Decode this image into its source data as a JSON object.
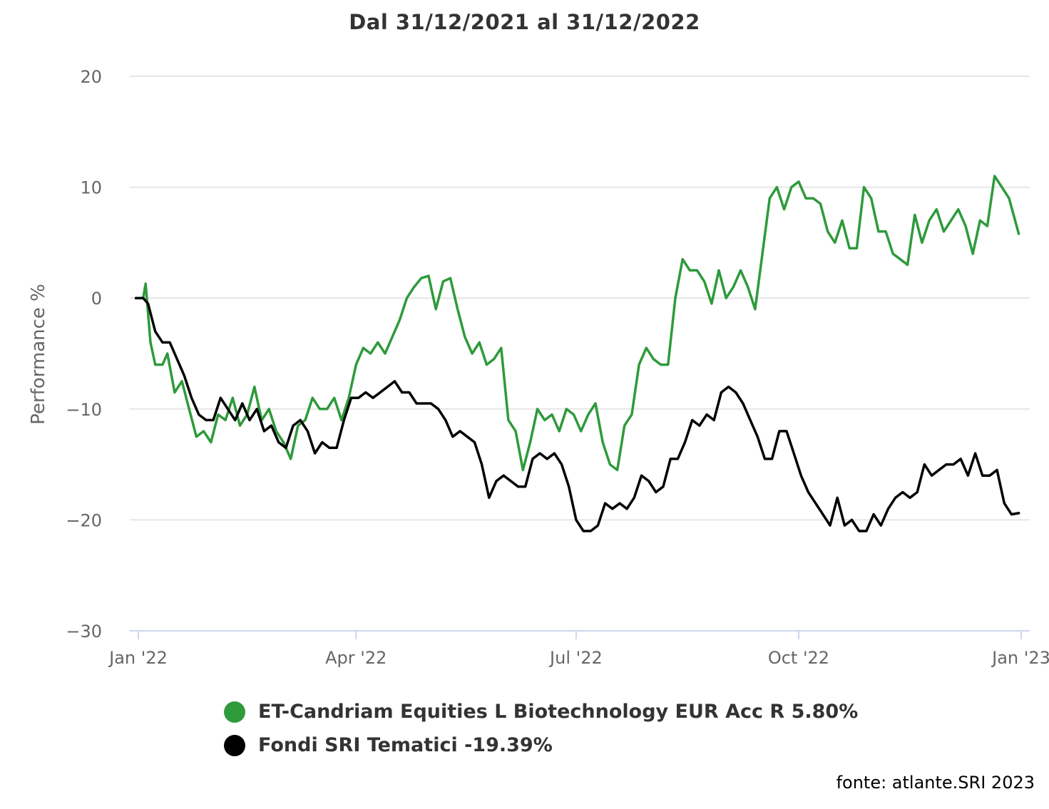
{
  "chart_data": {
    "type": "line",
    "title": "Dal 31/12/2021 al 31/12/2022",
    "ylabel": "Performance %",
    "xlabel": "",
    "ylim": [
      -30,
      20
    ],
    "y_ticks": [
      20,
      10,
      0,
      -10,
      -20,
      -30
    ],
    "y_tick_labels": [
      "20",
      "10",
      "0",
      "−10",
      "−20",
      "−30"
    ],
    "x_range": [
      "2021-12-31",
      "2022-12-31"
    ],
    "x_ticks": [
      {
        "date": "2022-01-01",
        "label": "Jan '22"
      },
      {
        "date": "2022-04-01",
        "label": "Apr '22"
      },
      {
        "date": "2022-07-01",
        "label": "Jul '22"
      },
      {
        "date": "2022-10-01",
        "label": "Oct '22"
      },
      {
        "date": "2023-01-01",
        "label": "Jan '23"
      }
    ],
    "grid": true,
    "legend_position": "bottom",
    "series": [
      {
        "name": "ET-Candriam Equities L Biotechnology EUR Acc R 5.80%",
        "color": "#2e9a3b",
        "points": [
          [
            "2021-12-31",
            0
          ],
          [
            "2022-01-03",
            0
          ],
          [
            "2022-01-04",
            1.3
          ],
          [
            "2022-01-06",
            -4
          ],
          [
            "2022-01-08",
            -6
          ],
          [
            "2022-01-11",
            -6
          ],
          [
            "2022-01-13",
            -5
          ],
          [
            "2022-01-16",
            -8.5
          ],
          [
            "2022-01-19",
            -7.5
          ],
          [
            "2022-01-22",
            -10
          ],
          [
            "2022-01-25",
            -12.5
          ],
          [
            "2022-01-28",
            -12
          ],
          [
            "2022-01-31",
            -13
          ],
          [
            "2022-02-03",
            -10.5
          ],
          [
            "2022-02-06",
            -11
          ],
          [
            "2022-02-09",
            -9
          ],
          [
            "2022-02-12",
            -11.5
          ],
          [
            "2022-02-15",
            -10.5
          ],
          [
            "2022-02-18",
            -8
          ],
          [
            "2022-02-21",
            -11
          ],
          [
            "2022-02-24",
            -10
          ],
          [
            "2022-02-27",
            -12
          ],
          [
            "2022-03-02",
            -13
          ],
          [
            "2022-03-05",
            -14.5
          ],
          [
            "2022-03-08",
            -11.5
          ],
          [
            "2022-03-11",
            -11
          ],
          [
            "2022-03-14",
            -9
          ],
          [
            "2022-03-17",
            -10
          ],
          [
            "2022-03-20",
            -10
          ],
          [
            "2022-03-23",
            -9
          ],
          [
            "2022-03-26",
            -11
          ],
          [
            "2022-03-29",
            -9
          ],
          [
            "2022-04-01",
            -6
          ],
          [
            "2022-04-04",
            -4.5
          ],
          [
            "2022-04-07",
            -5
          ],
          [
            "2022-04-10",
            -4
          ],
          [
            "2022-04-13",
            -5
          ],
          [
            "2022-04-16",
            -3.5
          ],
          [
            "2022-04-19",
            -2
          ],
          [
            "2022-04-22",
            0
          ],
          [
            "2022-04-25",
            1
          ],
          [
            "2022-04-28",
            1.8
          ],
          [
            "2022-05-01",
            2
          ],
          [
            "2022-05-04",
            -1
          ],
          [
            "2022-05-07",
            1.5
          ],
          [
            "2022-05-10",
            1.8
          ],
          [
            "2022-05-13",
            -1
          ],
          [
            "2022-05-16",
            -3.5
          ],
          [
            "2022-05-19",
            -5
          ],
          [
            "2022-05-22",
            -4
          ],
          [
            "2022-05-25",
            -6
          ],
          [
            "2022-05-28",
            -5.5
          ],
          [
            "2022-05-31",
            -4.5
          ],
          [
            "2022-06-03",
            -11
          ],
          [
            "2022-06-06",
            -12
          ],
          [
            "2022-06-09",
            -15.5
          ],
          [
            "2022-06-12",
            -13
          ],
          [
            "2022-06-15",
            -10
          ],
          [
            "2022-06-18",
            -11
          ],
          [
            "2022-06-21",
            -10.5
          ],
          [
            "2022-06-24",
            -12
          ],
          [
            "2022-06-27",
            -10
          ],
          [
            "2022-06-30",
            -10.5
          ],
          [
            "2022-07-03",
            -12
          ],
          [
            "2022-07-06",
            -10.5
          ],
          [
            "2022-07-09",
            -9.5
          ],
          [
            "2022-07-12",
            -13
          ],
          [
            "2022-07-15",
            -15
          ],
          [
            "2022-07-18",
            -15.5
          ],
          [
            "2022-07-21",
            -11.5
          ],
          [
            "2022-07-24",
            -10.5
          ],
          [
            "2022-07-27",
            -6
          ],
          [
            "2022-07-30",
            -4.5
          ],
          [
            "2022-08-02",
            -5.5
          ],
          [
            "2022-08-05",
            -6
          ],
          [
            "2022-08-08",
            -6
          ],
          [
            "2022-08-11",
            0
          ],
          [
            "2022-08-14",
            3.5
          ],
          [
            "2022-08-17",
            2.5
          ],
          [
            "2022-08-20",
            2.5
          ],
          [
            "2022-08-23",
            1.5
          ],
          [
            "2022-08-26",
            -0.5
          ],
          [
            "2022-08-29",
            2.5
          ],
          [
            "2022-09-01",
            0
          ],
          [
            "2022-09-04",
            1
          ],
          [
            "2022-09-07",
            2.5
          ],
          [
            "2022-09-10",
            1
          ],
          [
            "2022-09-13",
            -1
          ],
          [
            "2022-09-16",
            4
          ],
          [
            "2022-09-19",
            9
          ],
          [
            "2022-09-22",
            10
          ],
          [
            "2022-09-25",
            8
          ],
          [
            "2022-09-28",
            10
          ],
          [
            "2022-10-01",
            10.5
          ],
          [
            "2022-10-04",
            9
          ],
          [
            "2022-10-07",
            9
          ],
          [
            "2022-10-10",
            8.5
          ],
          [
            "2022-10-13",
            6
          ],
          [
            "2022-10-16",
            5
          ],
          [
            "2022-10-19",
            7
          ],
          [
            "2022-10-22",
            4.5
          ],
          [
            "2022-10-25",
            4.5
          ],
          [
            "2022-10-28",
            10
          ],
          [
            "2022-10-31",
            9
          ],
          [
            "2022-11-03",
            6
          ],
          [
            "2022-11-06",
            6
          ],
          [
            "2022-11-09",
            4
          ],
          [
            "2022-11-12",
            3.5
          ],
          [
            "2022-11-15",
            3
          ],
          [
            "2022-11-18",
            7.5
          ],
          [
            "2022-11-21",
            5
          ],
          [
            "2022-11-24",
            7
          ],
          [
            "2022-11-27",
            8
          ],
          [
            "2022-11-30",
            6
          ],
          [
            "2022-12-03",
            7
          ],
          [
            "2022-12-06",
            8
          ],
          [
            "2022-12-09",
            6.5
          ],
          [
            "2022-12-12",
            4
          ],
          [
            "2022-12-15",
            7
          ],
          [
            "2022-12-18",
            6.5
          ],
          [
            "2022-12-21",
            11
          ],
          [
            "2022-12-24",
            10
          ],
          [
            "2022-12-27",
            9
          ],
          [
            "2022-12-31",
            5.8
          ]
        ]
      },
      {
        "name": "Fondi SRI Tematici -19.39%",
        "color": "#000000",
        "points": [
          [
            "2021-12-31",
            0
          ],
          [
            "2022-01-03",
            0
          ],
          [
            "2022-01-05",
            -0.5
          ],
          [
            "2022-01-08",
            -3
          ],
          [
            "2022-01-11",
            -4
          ],
          [
            "2022-01-14",
            -4
          ],
          [
            "2022-01-17",
            -5.5
          ],
          [
            "2022-01-20",
            -7
          ],
          [
            "2022-01-23",
            -9
          ],
          [
            "2022-01-26",
            -10.5
          ],
          [
            "2022-01-29",
            -11
          ],
          [
            "2022-02-01",
            -11
          ],
          [
            "2022-02-04",
            -9
          ],
          [
            "2022-02-07",
            -10
          ],
          [
            "2022-02-10",
            -11
          ],
          [
            "2022-02-13",
            -9.5
          ],
          [
            "2022-02-16",
            -11
          ],
          [
            "2022-02-19",
            -10
          ],
          [
            "2022-02-22",
            -12
          ],
          [
            "2022-02-25",
            -11.5
          ],
          [
            "2022-02-28",
            -13
          ],
          [
            "2022-03-03",
            -13.5
          ],
          [
            "2022-03-06",
            -11.5
          ],
          [
            "2022-03-09",
            -11
          ],
          [
            "2022-03-12",
            -12
          ],
          [
            "2022-03-15",
            -14
          ],
          [
            "2022-03-18",
            -13
          ],
          [
            "2022-03-21",
            -13.5
          ],
          [
            "2022-03-24",
            -13.5
          ],
          [
            "2022-03-27",
            -11
          ],
          [
            "2022-03-30",
            -9
          ],
          [
            "2022-04-02",
            -9
          ],
          [
            "2022-04-05",
            -8.5
          ],
          [
            "2022-04-08",
            -9
          ],
          [
            "2022-04-11",
            -8.5
          ],
          [
            "2022-04-14",
            -8
          ],
          [
            "2022-04-17",
            -7.5
          ],
          [
            "2022-04-20",
            -8.5
          ],
          [
            "2022-04-23",
            -8.5
          ],
          [
            "2022-04-26",
            -9.5
          ],
          [
            "2022-04-29",
            -9.5
          ],
          [
            "2022-05-02",
            -9.5
          ],
          [
            "2022-05-05",
            -10
          ],
          [
            "2022-05-08",
            -11
          ],
          [
            "2022-05-11",
            -12.5
          ],
          [
            "2022-05-14",
            -12
          ],
          [
            "2022-05-17",
            -12.5
          ],
          [
            "2022-05-20",
            -13
          ],
          [
            "2022-05-23",
            -15
          ],
          [
            "2022-05-26",
            -18
          ],
          [
            "2022-05-29",
            -16.5
          ],
          [
            "2022-06-01",
            -16
          ],
          [
            "2022-06-04",
            -16.5
          ],
          [
            "2022-06-07",
            -17
          ],
          [
            "2022-06-10",
            -17
          ],
          [
            "2022-06-13",
            -14.5
          ],
          [
            "2022-06-16",
            -14
          ],
          [
            "2022-06-19",
            -14.5
          ],
          [
            "2022-06-22",
            -14
          ],
          [
            "2022-06-25",
            -15
          ],
          [
            "2022-06-28",
            -17
          ],
          [
            "2022-07-01",
            -20
          ],
          [
            "2022-07-04",
            -21
          ],
          [
            "2022-07-07",
            -21
          ],
          [
            "2022-07-10",
            -20.5
          ],
          [
            "2022-07-13",
            -18.5
          ],
          [
            "2022-07-16",
            -19
          ],
          [
            "2022-07-19",
            -18.5
          ],
          [
            "2022-07-22",
            -19
          ],
          [
            "2022-07-25",
            -18
          ],
          [
            "2022-07-28",
            -16
          ],
          [
            "2022-07-31",
            -16.5
          ],
          [
            "2022-08-03",
            -17.5
          ],
          [
            "2022-08-06",
            -17
          ],
          [
            "2022-08-09",
            -14.5
          ],
          [
            "2022-08-12",
            -14.5
          ],
          [
            "2022-08-15",
            -13
          ],
          [
            "2022-08-18",
            -11
          ],
          [
            "2022-08-21",
            -11.5
          ],
          [
            "2022-08-24",
            -10.5
          ],
          [
            "2022-08-27",
            -11
          ],
          [
            "2022-08-30",
            -8.5
          ],
          [
            "2022-09-02",
            -8
          ],
          [
            "2022-09-05",
            -8.5
          ],
          [
            "2022-09-08",
            -9.5
          ],
          [
            "2022-09-11",
            -11
          ],
          [
            "2022-09-14",
            -12.5
          ],
          [
            "2022-09-17",
            -14.5
          ],
          [
            "2022-09-20",
            -14.5
          ],
          [
            "2022-09-23",
            -12
          ],
          [
            "2022-09-26",
            -12
          ],
          [
            "2022-09-29",
            -14
          ],
          [
            "2022-10-02",
            -16
          ],
          [
            "2022-10-05",
            -17.5
          ],
          [
            "2022-10-08",
            -18.5
          ],
          [
            "2022-10-11",
            -19.5
          ],
          [
            "2022-10-14",
            -20.5
          ],
          [
            "2022-10-17",
            -18
          ],
          [
            "2022-10-20",
            -20.5
          ],
          [
            "2022-10-23",
            -20
          ],
          [
            "2022-10-26",
            -21
          ],
          [
            "2022-10-29",
            -21
          ],
          [
            "2022-11-01",
            -19.5
          ],
          [
            "2022-11-04",
            -20.5
          ],
          [
            "2022-11-07",
            -19
          ],
          [
            "2022-11-10",
            -18
          ],
          [
            "2022-11-13",
            -17.5
          ],
          [
            "2022-11-16",
            -18
          ],
          [
            "2022-11-19",
            -17.5
          ],
          [
            "2022-11-22",
            -15
          ],
          [
            "2022-11-25",
            -16
          ],
          [
            "2022-11-28",
            -15.5
          ],
          [
            "2022-12-01",
            -15
          ],
          [
            "2022-12-04",
            -15
          ],
          [
            "2022-12-07",
            -14.5
          ],
          [
            "2022-12-10",
            -16
          ],
          [
            "2022-12-13",
            -14
          ],
          [
            "2022-12-16",
            -16
          ],
          [
            "2022-12-19",
            -16
          ],
          [
            "2022-12-22",
            -15.5
          ],
          [
            "2022-12-25",
            -18.5
          ],
          [
            "2022-12-28",
            -19.5
          ],
          [
            "2022-12-31",
            -19.39
          ]
        ]
      }
    ]
  },
  "source_note": "fonte: atlante.SRI 2023"
}
